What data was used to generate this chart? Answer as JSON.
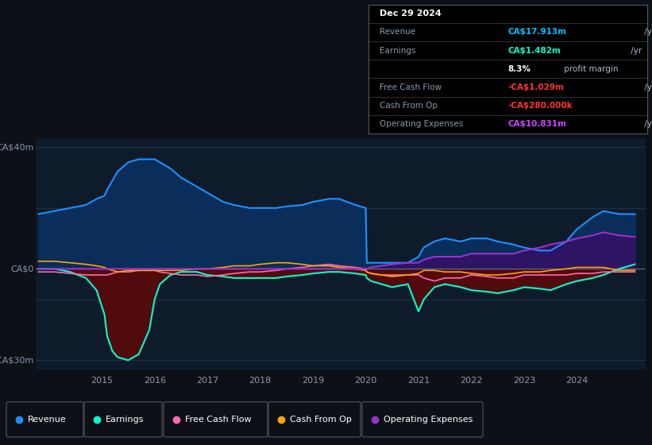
{
  "bg_color": "#0d1117",
  "plot_bg_color": "#0d1b2a",
  "grid_color": "#263d54",
  "ylabel_top": "CA$40m",
  "ylabel_mid": "CA$0",
  "ylabel_bot": "-CA$30m",
  "ylim": [
    -33,
    43
  ],
  "xlim": [
    2013.75,
    2025.3
  ],
  "xticks": [
    2015,
    2016,
    2017,
    2018,
    2019,
    2020,
    2021,
    2022,
    2023,
    2024
  ],
  "years": [
    2013.8,
    2014.1,
    2014.4,
    2014.7,
    2014.9,
    2015.05,
    2015.1,
    2015.2,
    2015.3,
    2015.5,
    2015.7,
    2015.9,
    2016.0,
    2016.1,
    2016.3,
    2016.5,
    2016.8,
    2017.0,
    2017.3,
    2017.5,
    2017.8,
    2018.0,
    2018.3,
    2018.5,
    2018.8,
    2019.0,
    2019.3,
    2019.5,
    2019.8,
    2020.0,
    2020.02,
    2020.1,
    2020.3,
    2020.5,
    2020.8,
    2021.0,
    2021.1,
    2021.3,
    2021.5,
    2021.8,
    2022.0,
    2022.3,
    2022.5,
    2022.8,
    2023.0,
    2023.3,
    2023.5,
    2023.8,
    2024.0,
    2024.3,
    2024.5,
    2024.8,
    2025.1
  ],
  "revenue": [
    18,
    19,
    20,
    21,
    23,
    24,
    26,
    29,
    32,
    35,
    36,
    36,
    36,
    35,
    33,
    30,
    27,
    25,
    22,
    21,
    20,
    20,
    20,
    20.5,
    21,
    22,
    23,
    23,
    21,
    20,
    2,
    2,
    2,
    2,
    2,
    4,
    7,
    9,
    10,
    9,
    10,
    10,
    9,
    8,
    7,
    6,
    6,
    9,
    13,
    17,
    19,
    18,
    18
  ],
  "earnings": [
    0,
    0,
    -1,
    -3,
    -7,
    -15,
    -22,
    -27,
    -29,
    -30,
    -28,
    -20,
    -10,
    -5,
    -2,
    -1,
    -1,
    -2,
    -2.5,
    -3,
    -3,
    -3,
    -3,
    -2.5,
    -2,
    -1.5,
    -1,
    -1,
    -1.5,
    -2,
    -3,
    -4,
    -5,
    -6,
    -5,
    -14,
    -10,
    -6,
    -5,
    -6,
    -7,
    -7.5,
    -8,
    -7,
    -6,
    -6.5,
    -7,
    -5,
    -4,
    -3,
    -2,
    0,
    1.5
  ],
  "free_cash_flow": [
    -1,
    -1,
    -1.5,
    -2,
    -2,
    -2,
    -2,
    -1.5,
    -1,
    -1,
    -0.5,
    -0.5,
    -0.5,
    -1,
    -1.5,
    -2,
    -2,
    -2.5,
    -2,
    -1.5,
    -1,
    -1,
    -0.5,
    0,
    0.5,
    1,
    1.5,
    1,
    0.5,
    0,
    -1,
    -1.5,
    -2,
    -2,
    -2,
    -2,
    -3,
    -4,
    -3,
    -3,
    -2,
    -2.5,
    -3,
    -3,
    -2,
    -2,
    -2,
    -2,
    -1.5,
    -1.5,
    -1,
    -1,
    -1
  ],
  "cash_from_op": [
    2.5,
    2.5,
    2,
    1.5,
    1,
    0.5,
    0,
    -0.5,
    -1,
    -0.5,
    -0.5,
    -0.5,
    -0.5,
    -0.5,
    -0.5,
    -0.5,
    0,
    0,
    0.5,
    1,
    1,
    1.5,
    2,
    2,
    1.5,
    1,
    1,
    0.5,
    0,
    -0.5,
    -1,
    -1.5,
    -2,
    -2.5,
    -2,
    -1.5,
    -0.5,
    -0.5,
    -1,
    -1,
    -1.5,
    -2,
    -2,
    -1.5,
    -1,
    -1,
    -0.5,
    0,
    0.5,
    0.5,
    0.5,
    -0.5,
    -0.5
  ],
  "op_expenses": [
    0,
    0,
    0,
    0,
    0,
    0,
    0,
    0,
    0,
    0,
    0,
    0,
    0,
    0,
    0,
    0,
    0,
    0,
    0,
    0,
    0,
    0,
    0,
    0,
    0,
    0,
    0,
    0,
    0,
    0,
    0,
    0.5,
    1,
    1.5,
    2,
    2,
    3,
    4,
    4,
    4,
    5,
    5,
    5,
    5,
    6,
    7,
    8,
    9,
    10,
    11,
    12,
    11,
    10.5
  ],
  "revenue_color": "#1e90ff",
  "revenue_fill": "#0a3060",
  "earnings_color": "#00ffcc",
  "earnings_fill": "#5a0a0a",
  "fcf_color": "#ff69b4",
  "cfop_color": "#ffa500",
  "opex_color": "#9932cc",
  "opex_fill": "#3d0a6b",
  "zero_color": "#607080",
  "info_box": {
    "title": "Dec 29 2024",
    "rows": [
      {
        "label": "Revenue",
        "value": "CA$17.913m",
        "suffix": " /yr",
        "lc": "#8899aa",
        "vc": "#00bfff"
      },
      {
        "label": "Earnings",
        "value": "CA$1.482m",
        "suffix": " /yr",
        "lc": "#8899aa",
        "vc": "#00ffcc"
      },
      {
        "label": "",
        "value": "8.3%",
        "suffix": " profit margin",
        "lc": "#8899aa",
        "vc": "#ffffff"
      },
      {
        "label": "Free Cash Flow",
        "value": "-CA$1.029m",
        "suffix": " /yr",
        "lc": "#8899aa",
        "vc": "#ff3333"
      },
      {
        "label": "Cash From Op",
        "value": "-CA$280.000k",
        "suffix": " /yr",
        "lc": "#8899aa",
        "vc": "#ff3333"
      },
      {
        "label": "Operating Expenses",
        "value": "CA$10.831m",
        "suffix": " /yr",
        "lc": "#8899aa",
        "vc": "#cc44ff"
      }
    ]
  },
  "legend": [
    {
      "label": "Revenue",
      "color": "#1e90ff"
    },
    {
      "label": "Earnings",
      "color": "#00ffcc"
    },
    {
      "label": "Free Cash Flow",
      "color": "#ff69b4"
    },
    {
      "label": "Cash From Op",
      "color": "#ffa500"
    },
    {
      "label": "Operating Expenses",
      "color": "#9932cc"
    }
  ]
}
